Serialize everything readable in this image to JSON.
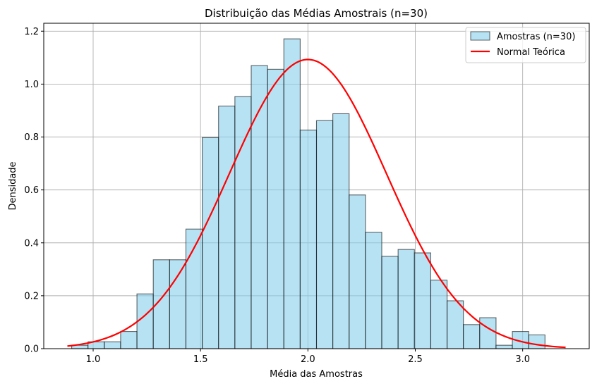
{
  "chart_data": {
    "type": "bar",
    "title": "Distribuição das Médias Amostrais (n=30)",
    "xlabel": "Média das Amostras",
    "ylabel": "Densidade",
    "xlim": [
      0.77,
      3.31
    ],
    "ylim": [
      0.0,
      1.23
    ],
    "grid": true,
    "x_ticks": [
      1.0,
      1.5,
      2.0,
      2.5,
      3.0
    ],
    "x_tick_labels": [
      "1.0",
      "1.5",
      "2.0",
      "2.5",
      "3.0"
    ],
    "y_ticks": [
      0.0,
      0.2,
      0.4,
      0.6,
      0.8,
      1.0,
      1.2
    ],
    "y_tick_labels": [
      "0.0",
      "0.2",
      "0.4",
      "0.6",
      "0.8",
      "1.0",
      "1.2"
    ],
    "legend_position": "top-right",
    "histogram": {
      "name": "Amostras (n=30)",
      "color": "#87ceeb",
      "edge_color": "#000000",
      "bin_start": 0.9,
      "bin_width": 0.076,
      "values": [
        0.013,
        0.026,
        0.026,
        0.065,
        0.207,
        0.336,
        0.336,
        0.452,
        0.798,
        0.917,
        0.953,
        1.07,
        1.056,
        1.171,
        0.826,
        0.862,
        0.888,
        0.581,
        0.44,
        0.349,
        0.375,
        0.362,
        0.259,
        0.181,
        0.091,
        0.117,
        0.013,
        0.065,
        0.052
      ]
    },
    "normal_curve": {
      "name": "Normal Teórica",
      "color": "#ff0000",
      "mean": 2.0,
      "std": 0.365,
      "x_range": [
        0.88,
        3.2
      ]
    }
  }
}
